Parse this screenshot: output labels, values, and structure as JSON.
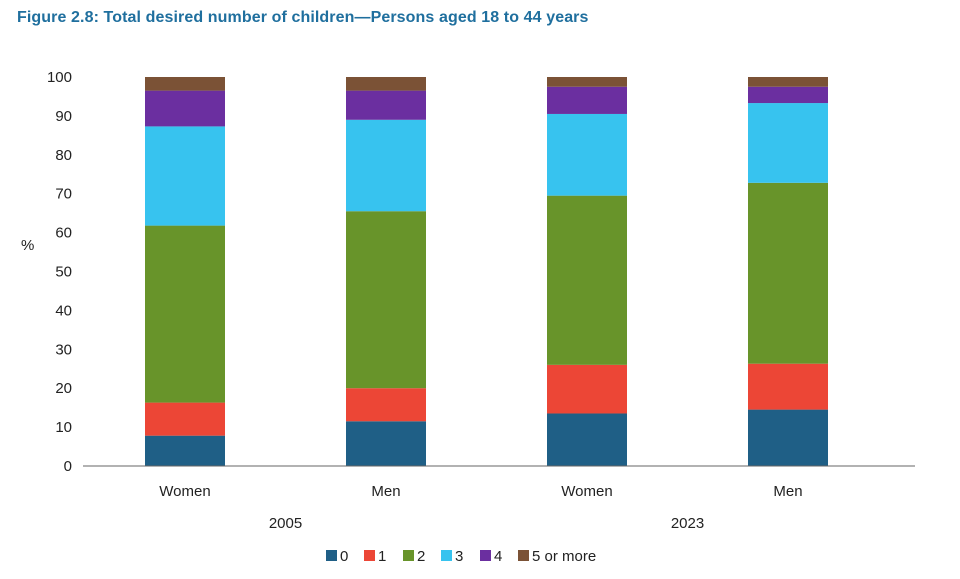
{
  "chart_data": {
    "type": "bar",
    "stacked": true,
    "title": "Figure 2.8: Total desired number of children—Persons aged 18 to 44 years",
    "ylabel": "%",
    "ylim": [
      0,
      100
    ],
    "yticks": [
      "0",
      "10",
      "20",
      "30",
      "40",
      "50",
      "60",
      "70",
      "80",
      "90",
      "100"
    ],
    "categories": [
      "Women",
      "Men",
      "Women",
      "Men"
    ],
    "groups": [
      {
        "label": "2005",
        "members": [
          0,
          1
        ]
      },
      {
        "label": "2023",
        "members": [
          2,
          3
        ]
      }
    ],
    "series": [
      {
        "name": "0",
        "color": "#1f5f86",
        "values": [
          7.8,
          11.5,
          13.5,
          14.5
        ]
      },
      {
        "name": "1",
        "color": "#ec4636",
        "values": [
          8.5,
          8.5,
          12.5,
          11.8
        ]
      },
      {
        "name": "2",
        "color": "#68942a",
        "values": [
          45.5,
          45.5,
          43.5,
          46.5
        ]
      },
      {
        "name": "3",
        "color": "#37c3ef",
        "values": [
          25.5,
          23.5,
          21.0,
          20.5
        ]
      },
      {
        "name": "4",
        "color": "#6b2fa0",
        "values": [
          9.2,
          7.5,
          7.0,
          4.2
        ]
      },
      {
        "name": "5 or more",
        "color": "#7b5236",
        "values": [
          3.5,
          3.5,
          2.5,
          2.5
        ]
      }
    ],
    "legend_position": "bottom"
  }
}
